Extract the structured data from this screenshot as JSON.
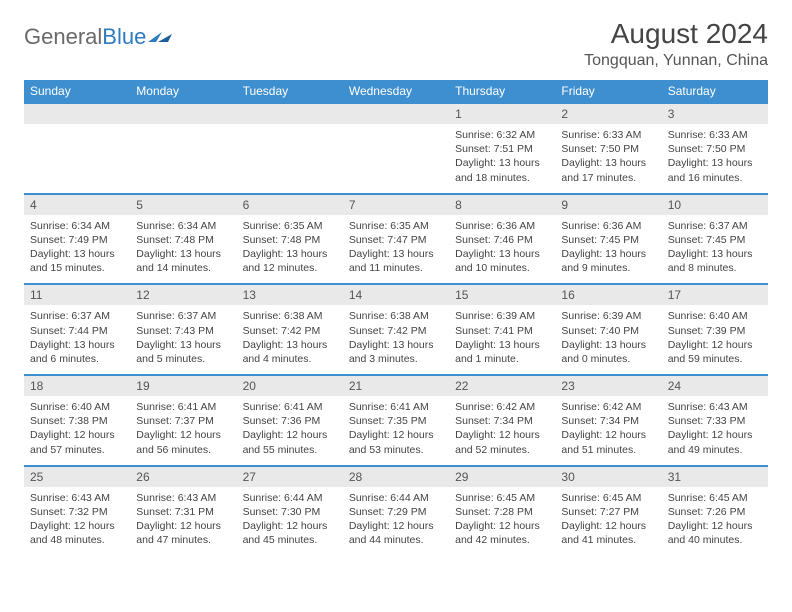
{
  "brand": {
    "part1": "General",
    "part2": "Blue"
  },
  "title": "August 2024",
  "location": "Tongquan, Yunnan, China",
  "colors": {
    "header_bg": "#3d8fcf",
    "header_text": "#ffffff",
    "band_bg": "#e9e9e9",
    "rule": "#3d8fcf",
    "text": "#444444",
    "page_bg": "#ffffff"
  },
  "dow": [
    "Sunday",
    "Monday",
    "Tuesday",
    "Wednesday",
    "Thursday",
    "Friday",
    "Saturday"
  ],
  "weeks": [
    [
      null,
      null,
      null,
      null,
      {
        "n": "1",
        "sr": "6:32 AM",
        "ss": "7:51 PM",
        "dl": "13 hours and 18 minutes."
      },
      {
        "n": "2",
        "sr": "6:33 AM",
        "ss": "7:50 PM",
        "dl": "13 hours and 17 minutes."
      },
      {
        "n": "3",
        "sr": "6:33 AM",
        "ss": "7:50 PM",
        "dl": "13 hours and 16 minutes."
      }
    ],
    [
      {
        "n": "4",
        "sr": "6:34 AM",
        "ss": "7:49 PM",
        "dl": "13 hours and 15 minutes."
      },
      {
        "n": "5",
        "sr": "6:34 AM",
        "ss": "7:48 PM",
        "dl": "13 hours and 14 minutes."
      },
      {
        "n": "6",
        "sr": "6:35 AM",
        "ss": "7:48 PM",
        "dl": "13 hours and 12 minutes."
      },
      {
        "n": "7",
        "sr": "6:35 AM",
        "ss": "7:47 PM",
        "dl": "13 hours and 11 minutes."
      },
      {
        "n": "8",
        "sr": "6:36 AM",
        "ss": "7:46 PM",
        "dl": "13 hours and 10 minutes."
      },
      {
        "n": "9",
        "sr": "6:36 AM",
        "ss": "7:45 PM",
        "dl": "13 hours and 9 minutes."
      },
      {
        "n": "10",
        "sr": "6:37 AM",
        "ss": "7:45 PM",
        "dl": "13 hours and 8 minutes."
      }
    ],
    [
      {
        "n": "11",
        "sr": "6:37 AM",
        "ss": "7:44 PM",
        "dl": "13 hours and 6 minutes."
      },
      {
        "n": "12",
        "sr": "6:37 AM",
        "ss": "7:43 PM",
        "dl": "13 hours and 5 minutes."
      },
      {
        "n": "13",
        "sr": "6:38 AM",
        "ss": "7:42 PM",
        "dl": "13 hours and 4 minutes."
      },
      {
        "n": "14",
        "sr": "6:38 AM",
        "ss": "7:42 PM",
        "dl": "13 hours and 3 minutes."
      },
      {
        "n": "15",
        "sr": "6:39 AM",
        "ss": "7:41 PM",
        "dl": "13 hours and 1 minute."
      },
      {
        "n": "16",
        "sr": "6:39 AM",
        "ss": "7:40 PM",
        "dl": "13 hours and 0 minutes."
      },
      {
        "n": "17",
        "sr": "6:40 AM",
        "ss": "7:39 PM",
        "dl": "12 hours and 59 minutes."
      }
    ],
    [
      {
        "n": "18",
        "sr": "6:40 AM",
        "ss": "7:38 PM",
        "dl": "12 hours and 57 minutes."
      },
      {
        "n": "19",
        "sr": "6:41 AM",
        "ss": "7:37 PM",
        "dl": "12 hours and 56 minutes."
      },
      {
        "n": "20",
        "sr": "6:41 AM",
        "ss": "7:36 PM",
        "dl": "12 hours and 55 minutes."
      },
      {
        "n": "21",
        "sr": "6:41 AM",
        "ss": "7:35 PM",
        "dl": "12 hours and 53 minutes."
      },
      {
        "n": "22",
        "sr": "6:42 AM",
        "ss": "7:34 PM",
        "dl": "12 hours and 52 minutes."
      },
      {
        "n": "23",
        "sr": "6:42 AM",
        "ss": "7:34 PM",
        "dl": "12 hours and 51 minutes."
      },
      {
        "n": "24",
        "sr": "6:43 AM",
        "ss": "7:33 PM",
        "dl": "12 hours and 49 minutes."
      }
    ],
    [
      {
        "n": "25",
        "sr": "6:43 AM",
        "ss": "7:32 PM",
        "dl": "12 hours and 48 minutes."
      },
      {
        "n": "26",
        "sr": "6:43 AM",
        "ss": "7:31 PM",
        "dl": "12 hours and 47 minutes."
      },
      {
        "n": "27",
        "sr": "6:44 AM",
        "ss": "7:30 PM",
        "dl": "12 hours and 45 minutes."
      },
      {
        "n": "28",
        "sr": "6:44 AM",
        "ss": "7:29 PM",
        "dl": "12 hours and 44 minutes."
      },
      {
        "n": "29",
        "sr": "6:45 AM",
        "ss": "7:28 PM",
        "dl": "12 hours and 42 minutes."
      },
      {
        "n": "30",
        "sr": "6:45 AM",
        "ss": "7:27 PM",
        "dl": "12 hours and 41 minutes."
      },
      {
        "n": "31",
        "sr": "6:45 AM",
        "ss": "7:26 PM",
        "dl": "12 hours and 40 minutes."
      }
    ]
  ],
  "labels": {
    "sunrise": "Sunrise:",
    "sunset": "Sunset:",
    "daylight": "Daylight:"
  }
}
